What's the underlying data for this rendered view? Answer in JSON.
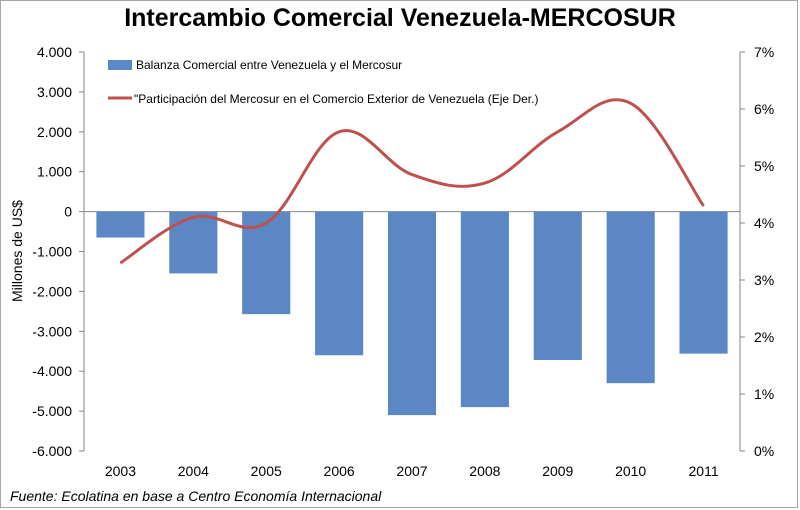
{
  "chart_data": {
    "type": "bar-line",
    "title": "Intercambio Comercial Venezuela-MERCOSUR",
    "source": "Fuente: Ecolatina en base a Centro Economía Internacional",
    "ylabel": "Millones de US$",
    "ylabel_right": "",
    "categories": [
      "2003",
      "2004",
      "2005",
      "2006",
      "2007",
      "2008",
      "2009",
      "2010",
      "2011"
    ],
    "ylim": [
      -6000,
      4000
    ],
    "y_ticks": [
      4000,
      3000,
      2000,
      1000,
      0,
      -1000,
      -2000,
      -3000,
      -4000,
      -5000,
      -6000
    ],
    "y_tick_labels": [
      "4.000",
      "3.000",
      "2.000",
      "1.000",
      "0",
      "-1.000",
      "-2.000",
      "-3.000",
      "-4.000",
      "-5.000",
      "-6.000"
    ],
    "ylim_right": [
      0,
      7
    ],
    "y_right_ticks": [
      7,
      6,
      5,
      4,
      3,
      2,
      1,
      0
    ],
    "y_right_tick_labels": [
      "7%",
      "6%",
      "5%",
      "4%",
      "3%",
      "2%",
      "1%",
      "0%"
    ],
    "legend_position": "top-left",
    "series": [
      {
        "name": "Balanza Comercial entre Venezuela y el Mercosur",
        "type": "bar",
        "axis": "left",
        "color": "#5b87c4",
        "values": [
          -650,
          -1550,
          -2570,
          -3600,
          -5100,
          -4900,
          -3720,
          -4300,
          -3560
        ]
      },
      {
        "name": "\"Participación del Mercosur en el Comercio Exterior de Venezuela (Eje Der.)",
        "type": "line",
        "axis": "right",
        "color": "#c0504d",
        "values": [
          3.3,
          4.1,
          4.0,
          5.6,
          4.85,
          4.7,
          5.6,
          6.1,
          4.3
        ]
      }
    ]
  }
}
